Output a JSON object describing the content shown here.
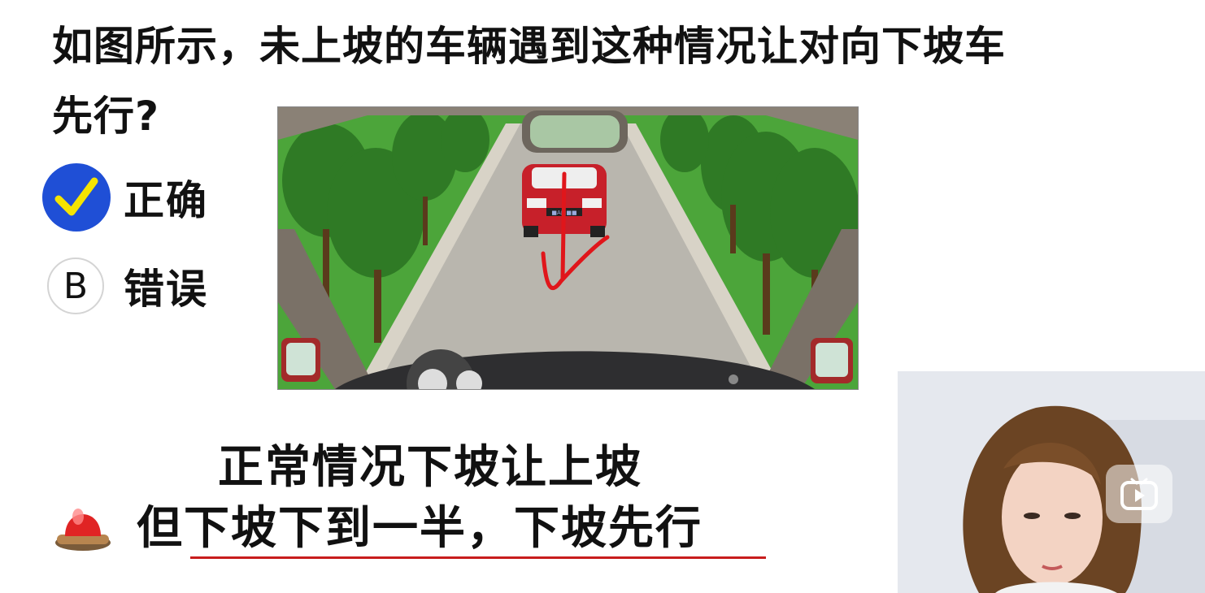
{
  "question": {
    "line1": "如图所示，未上坡的车辆遇到这种情况让对向下坡车",
    "line2": "先行?"
  },
  "options": [
    {
      "marker": "✔",
      "marker_kind": "checkmark-selected",
      "label": "正确",
      "selected": true
    },
    {
      "marker": "B",
      "marker_kind": "letter",
      "label": "错误",
      "selected": false
    }
  ],
  "scene": {
    "description_icon": "car-interior-road-scene",
    "plate_text": "■A■■■"
  },
  "notes": {
    "line1": "正常情况下坡让上坡",
    "line2_prefix": "但",
    "line2_underlined": "下坡下到一半，下坡先行"
  },
  "icons": {
    "alarm": "red-siren-icon",
    "play": "video-play-icon",
    "webcam": "presenter-webcam"
  },
  "colors": {
    "selected_marker": "#1f4fd6",
    "checkmark": "#f5e400",
    "annotation_red": "#c81d1d"
  }
}
